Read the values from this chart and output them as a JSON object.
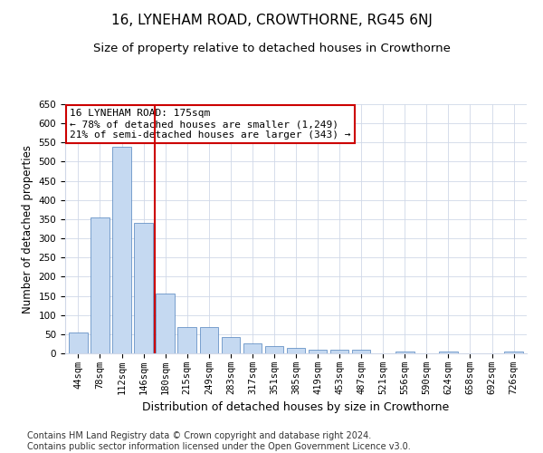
{
  "title": "16, LYNEHAM ROAD, CROWTHORNE, RG45 6NJ",
  "subtitle": "Size of property relative to detached houses in Crowthorne",
  "xlabel": "Distribution of detached houses by size in Crowthorne",
  "ylabel": "Number of detached properties",
  "bar_color": "#c5d9f1",
  "bar_edge_color": "#4f81bd",
  "vline_color": "#cc0000",
  "vline_x_index": 4,
  "annotation_text": "16 LYNEHAM ROAD: 175sqm\n← 78% of detached houses are smaller (1,249)\n21% of semi-detached houses are larger (343) →",
  "annotation_box_color": "#ffffff",
  "annotation_box_edge": "#cc0000",
  "categories": [
    "44sqm",
    "78sqm",
    "112sqm",
    "146sqm",
    "180sqm",
    "215sqm",
    "249sqm",
    "283sqm",
    "317sqm",
    "351sqm",
    "385sqm",
    "419sqm",
    "453sqm",
    "487sqm",
    "521sqm",
    "556sqm",
    "590sqm",
    "624sqm",
    "658sqm",
    "692sqm",
    "726sqm"
  ],
  "values": [
    55,
    355,
    540,
    340,
    155,
    68,
    68,
    42,
    25,
    20,
    15,
    10,
    10,
    10,
    0,
    5,
    0,
    5,
    0,
    0,
    4
  ],
  "ylim": [
    0,
    650
  ],
  "yticks": [
    0,
    50,
    100,
    150,
    200,
    250,
    300,
    350,
    400,
    450,
    500,
    550,
    600,
    650
  ],
  "background_color": "#ffffff",
  "grid_color": "#d0d8e8",
  "footnote": "Contains HM Land Registry data © Crown copyright and database right 2024.\nContains public sector information licensed under the Open Government Licence v3.0.",
  "title_fontsize": 11,
  "subtitle_fontsize": 9.5,
  "xlabel_fontsize": 9,
  "ylabel_fontsize": 8.5,
  "tick_fontsize": 7.5,
  "annotation_fontsize": 8,
  "footnote_fontsize": 7
}
